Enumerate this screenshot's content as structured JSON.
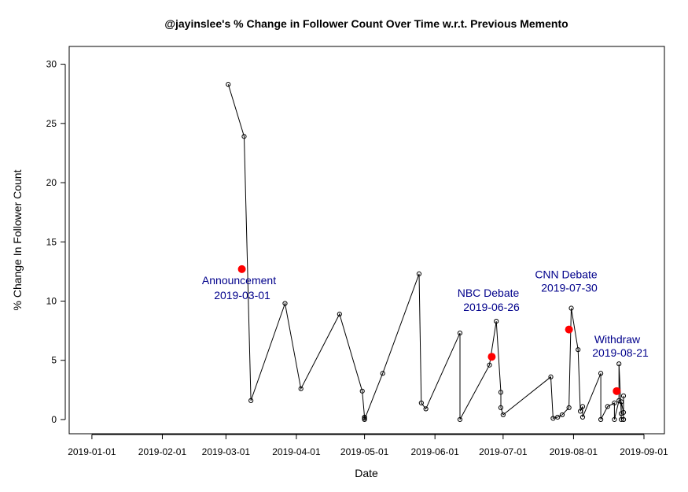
{
  "chart_data": {
    "type": "line",
    "title": "@jayinslee's % Change in Follower Count Over Time w.r.t. Previous Memento",
    "xlabel": "Date",
    "ylabel": "% Change In Follower Count",
    "xlim": [
      "2018-12-22",
      "2019-09-10"
    ],
    "ylim": [
      -1.2,
      31.5
    ],
    "x_ticks": [
      "2019-01-01",
      "2019-02-01",
      "2019-03-01",
      "2019-04-01",
      "2019-05-01",
      "2019-06-01",
      "2019-07-01",
      "2019-08-01",
      "2019-09-01"
    ],
    "y_ticks": [
      0,
      5,
      10,
      15,
      20,
      25,
      30
    ],
    "grid": false,
    "colors": {
      "line": "#000000",
      "event_marker": "#ff0000",
      "annotation_text": "#00008b"
    },
    "series": [
      {
        "points": [
          [
            "2019-03-02",
            28.3
          ],
          [
            "2019-03-09",
            23.9
          ],
          [
            "2019-03-12",
            1.6
          ],
          [
            "2019-03-27",
            9.8
          ],
          [
            "2019-04-03",
            2.6
          ],
          [
            "2019-04-20",
            8.9
          ],
          [
            "2019-04-30",
            2.4
          ],
          [
            "2019-05-01",
            0.2
          ],
          [
            "2019-05-01",
            0.1
          ],
          [
            "2019-05-01",
            0.0
          ],
          [
            "2019-05-09",
            3.9
          ],
          [
            "2019-05-25",
            12.3
          ],
          [
            "2019-05-26",
            1.4
          ],
          [
            "2019-05-28",
            0.9
          ],
          [
            "2019-06-12",
            7.3
          ],
          [
            "2019-06-12",
            0.0
          ],
          [
            "2019-06-25",
            4.6
          ],
          [
            "2019-06-28",
            8.3
          ],
          [
            "2019-06-30",
            2.3
          ],
          [
            "2019-06-30",
            1.0
          ],
          [
            "2019-07-01",
            0.4
          ],
          [
            "2019-07-22",
            3.6
          ],
          [
            "2019-07-23",
            0.1
          ],
          [
            "2019-07-25",
            0.2
          ],
          [
            "2019-07-27",
            0.4
          ],
          [
            "2019-07-30",
            1.0
          ],
          [
            "2019-07-31",
            9.4
          ],
          [
            "2019-08-03",
            5.9
          ],
          [
            "2019-08-04",
            0.7
          ],
          [
            "2019-08-05",
            1.1
          ],
          [
            "2019-08-05",
            0.2
          ],
          [
            "2019-08-13",
            3.9
          ],
          [
            "2019-08-13",
            0.0
          ],
          [
            "2019-08-16",
            1.1
          ],
          [
            "2019-08-19",
            1.4
          ],
          [
            "2019-08-19",
            0.0
          ],
          [
            "2019-08-21",
            1.6
          ],
          [
            "2019-08-21",
            4.7
          ],
          [
            "2019-08-22",
            0.5
          ],
          [
            "2019-08-22",
            0.0
          ],
          [
            "2019-08-22",
            1.5
          ],
          [
            "2019-08-23",
            0.6
          ],
          [
            "2019-08-23",
            0.0
          ],
          [
            "2019-08-23",
            2.0
          ],
          [
            "2019-08-23",
            0.0
          ]
        ]
      }
    ],
    "events": [
      {
        "x": "2019-03-08",
        "y": 12.7,
        "label": "Announcement",
        "date_label": "2019-03-01"
      },
      {
        "x": "2019-06-26",
        "y": 5.3,
        "label": "NBC Debate",
        "date_label": "2019-06-26"
      },
      {
        "x": "2019-07-30",
        "y": 7.6,
        "label": "CNN Debate",
        "date_label": "2019-07-30"
      },
      {
        "x": "2019-08-20",
        "y": 2.4,
        "label": "Withdraw",
        "date_label": "2019-08-21"
      }
    ]
  }
}
